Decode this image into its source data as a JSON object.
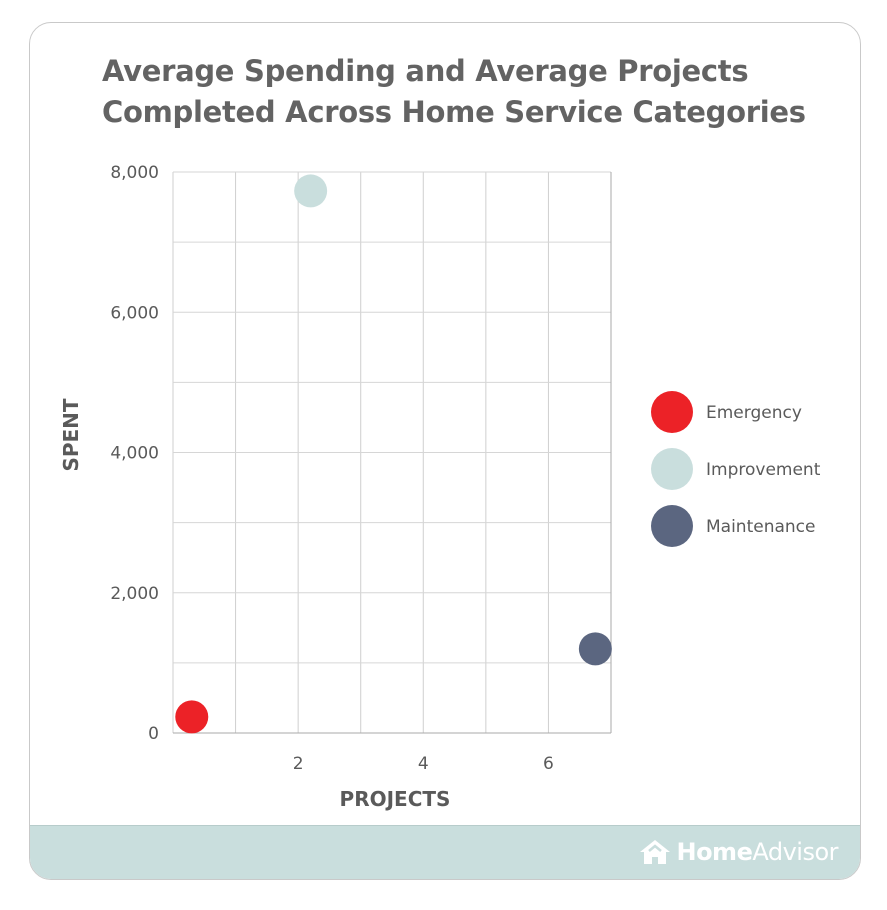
{
  "title": "Average Spending and Average Projects Completed Across Home Service Categories",
  "brand": {
    "home": "Home",
    "advisor": "Advisor"
  },
  "chart_data": {
    "type": "scatter",
    "title": "Average Spending and Average Projects Completed Across Home Service Categories",
    "xlabel": "PROJECTS",
    "ylabel": "SPENT",
    "xlim": [
      0,
      7
    ],
    "ylim": [
      0,
      8000
    ],
    "x_ticks": [
      2,
      4,
      6
    ],
    "x_tick_labels": [
      "2",
      "4",
      "6"
    ],
    "y_ticks": [
      0,
      2000,
      4000,
      6000,
      8000
    ],
    "y_tick_labels": [
      "0",
      "2,000",
      "4,000",
      "6,000",
      "8,000"
    ],
    "grid": true,
    "legend_position": "right",
    "series": [
      {
        "name": "Emergency",
        "color": "#ec2227",
        "x": [
          0.3
        ],
        "y": [
          230
        ]
      },
      {
        "name": "Improvement",
        "color": "#c9dedd",
        "x": [
          2.2
        ],
        "y": [
          7730
        ]
      },
      {
        "name": "Maintenance",
        "color": "#5b6680",
        "x": [
          6.75
        ],
        "y": [
          1200
        ]
      }
    ]
  }
}
